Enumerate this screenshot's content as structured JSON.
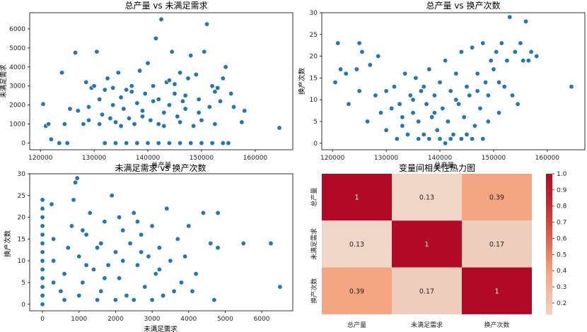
{
  "chart_data": [
    {
      "type": "scatter",
      "title": "总产量 vs 未满足需求",
      "xlabel": "总产量",
      "ylabel": "未满足需求",
      "xlim": [
        118000,
        167000
      ],
      "ylim": [
        -350,
        6850
      ],
      "xticks": [
        120000,
        130000,
        140000,
        150000,
        160000
      ],
      "yticks": [
        0,
        1000,
        2000,
        3000,
        4000,
        5000,
        6000
      ],
      "color": "#1f77b4",
      "points": [
        [
          120500,
          2050
        ],
        [
          121000,
          900
        ],
        [
          121500,
          1000
        ],
        [
          122000,
          200
        ],
        [
          123500,
          0
        ],
        [
          124000,
          3700
        ],
        [
          124500,
          1000
        ],
        [
          125000,
          0
        ],
        [
          125500,
          1800
        ],
        [
          126500,
          4750
        ],
        [
          127000,
          1700
        ],
        [
          128000,
          1000
        ],
        [
          128500,
          3200
        ],
        [
          129000,
          1900
        ],
        [
          129500,
          2900
        ],
        [
          130000,
          3000
        ],
        [
          130500,
          4800
        ],
        [
          131000,
          1000
        ],
        [
          131500,
          1500
        ],
        [
          132000,
          0
        ],
        [
          132000,
          2800
        ],
        [
          132500,
          3400
        ],
        [
          133000,
          1300
        ],
        [
          133500,
          2000
        ],
        [
          134000,
          1100
        ],
        [
          134500,
          3700
        ],
        [
          135000,
          2400
        ],
        [
          135500,
          1800
        ],
        [
          136000,
          2800
        ],
        [
          136500,
          1300
        ],
        [
          137000,
          3000
        ],
        [
          137500,
          1000
        ],
        [
          138000,
          2100
        ],
        [
          138500,
          3800
        ],
        [
          139000,
          1700
        ],
        [
          139500,
          2600
        ],
        [
          140000,
          4200
        ],
        [
          140500,
          1200
        ],
        [
          141000,
          3000
        ],
        [
          141500,
          5500
        ],
        [
          142000,
          2300
        ],
        [
          142500,
          6500
        ],
        [
          143000,
          900
        ],
        [
          143500,
          3200
        ],
        [
          144000,
          2000
        ],
        [
          144500,
          4800
        ],
        [
          145000,
          2600
        ],
        [
          145500,
          1400
        ],
        [
          146000,
          3700
        ],
        [
          146500,
          2200
        ],
        [
          147000,
          1800
        ],
        [
          147500,
          3400
        ],
        [
          148000,
          4600
        ],
        [
          148500,
          900
        ],
        [
          149000,
          3600
        ],
        [
          149500,
          2300
        ],
        [
          150000,
          1200
        ],
        [
          150500,
          4800
        ],
        [
          151000,
          6250
        ],
        [
          151500,
          1900
        ],
        [
          152000,
          3000
        ],
        [
          152500,
          1000
        ],
        [
          153000,
          2900
        ],
        [
          153500,
          2200
        ],
        [
          154000,
          3400
        ],
        [
          154500,
          4000
        ],
        [
          155000,
          0
        ],
        [
          155500,
          2600
        ],
        [
          156000,
          1900
        ],
        [
          157500,
          1100
        ],
        [
          158000,
          1700
        ],
        [
          164500,
          800
        ],
        [
          134000,
          0
        ],
        [
          136000,
          0
        ],
        [
          138000,
          0
        ],
        [
          140000,
          0
        ],
        [
          142000,
          0
        ],
        [
          144000,
          0
        ],
        [
          146000,
          0
        ],
        [
          148000,
          0
        ],
        [
          150000,
          0
        ],
        [
          152000,
          0
        ],
        [
          154000,
          0
        ],
        [
          137000,
          2700
        ],
        [
          139000,
          1400
        ],
        [
          141000,
          2200
        ],
        [
          143000,
          1600
        ],
        [
          145000,
          3100
        ],
        [
          135000,
          900
        ],
        [
          147000,
          2500
        ],
        [
          133500,
          2900
        ],
        [
          131000,
          2300
        ],
        [
          129000,
          1200
        ],
        [
          146000,
          1100
        ],
        [
          149500,
          1600
        ],
        [
          152500,
          2700
        ],
        [
          144000,
          3300
        ],
        [
          142000,
          1000
        ]
      ]
    },
    {
      "type": "scatter",
      "title": "总产量 vs 换产次数",
      "xlabel": "总产量",
      "ylabel": "换产次数",
      "xlim": [
        118000,
        167000
      ],
      "ylim": [
        -1.5,
        30
      ],
      "xticks": [
        120000,
        130000,
        140000,
        150000,
        160000
      ],
      "yticks": [
        0,
        5,
        10,
        15,
        20,
        25,
        30
      ],
      "color": "#1f77b4",
      "points": [
        [
          120500,
          14
        ],
        [
          121000,
          23
        ],
        [
          121500,
          17
        ],
        [
          122500,
          16
        ],
        [
          123000,
          9
        ],
        [
          124500,
          17
        ],
        [
          125000,
          23
        ],
        [
          125000,
          12
        ],
        [
          125500,
          21
        ],
        [
          126500,
          5
        ],
        [
          127000,
          18
        ],
        [
          128000,
          11
        ],
        [
          128500,
          20
        ],
        [
          129000,
          7
        ],
        [
          130000,
          12
        ],
        [
          130000,
          3
        ],
        [
          131000,
          8
        ],
        [
          131500,
          13
        ],
        [
          132000,
          1
        ],
        [
          132500,
          9
        ],
        [
          133000,
          4
        ],
        [
          133500,
          16
        ],
        [
          134000,
          2
        ],
        [
          134500,
          11
        ],
        [
          135000,
          7
        ],
        [
          135500,
          15
        ],
        [
          136000,
          5
        ],
        [
          136500,
          12
        ],
        [
          137000,
          2
        ],
        [
          137500,
          9
        ],
        [
          138000,
          17
        ],
        [
          138500,
          6
        ],
        [
          139000,
          11
        ],
        [
          139500,
          3
        ],
        [
          140000,
          14
        ],
        [
          140500,
          8
        ],
        [
          141000,
          19
        ],
        [
          141500,
          5
        ],
        [
          142000,
          12
        ],
        [
          142500,
          2
        ],
        [
          143000,
          16
        ],
        [
          143500,
          9
        ],
        [
          144000,
          21
        ],
        [
          144500,
          6
        ],
        [
          145000,
          13
        ],
        [
          145500,
          11
        ],
        [
          146000,
          22
        ],
        [
          146500,
          4
        ],
        [
          147000,
          16
        ],
        [
          147500,
          8
        ],
        [
          148000,
          23
        ],
        [
          148500,
          14
        ],
        [
          149000,
          11
        ],
        [
          149500,
          19
        ],
        [
          150000,
          17
        ],
        [
          150500,
          21
        ],
        [
          151000,
          14
        ],
        [
          151500,
          23
        ],
        [
          152000,
          13
        ],
        [
          152500,
          19
        ],
        [
          153000,
          29
        ],
        [
          153500,
          11
        ],
        [
          154000,
          21
        ],
        [
          154500,
          9
        ],
        [
          155000,
          23
        ],
        [
          155500,
          19
        ],
        [
          156000,
          28
        ],
        [
          156500,
          19
        ],
        [
          157000,
          21
        ],
        [
          158000,
          20
        ],
        [
          164500,
          13
        ],
        [
          136000,
          1
        ],
        [
          138000,
          1
        ],
        [
          140000,
          1
        ],
        [
          142000,
          1
        ],
        [
          144000,
          1
        ],
        [
          146000,
          1
        ],
        [
          148000,
          1
        ],
        [
          135000,
          10
        ],
        [
          139000,
          7
        ],
        [
          143000,
          10
        ],
        [
          147000,
          12
        ],
        [
          149000,
          5
        ],
        [
          151000,
          7
        ],
        [
          141000,
          0
        ],
        [
          145000,
          2
        ],
        [
          137000,
          13
        ],
        [
          133000,
          6
        ]
      ]
    },
    {
      "type": "scatter",
      "title": "未满足需求 vs 换产次数",
      "xlabel": "未满足需求",
      "ylabel": "换产次数",
      "xlim": [
        -350,
        6850
      ],
      "ylim": [
        -1.5,
        30
      ],
      "xticks": [
        0,
        1000,
        2000,
        3000,
        4000,
        5000,
        6000
      ],
      "yticks": [
        0,
        5,
        10,
        15,
        20,
        25,
        30
      ],
      "color": "#1f77b4",
      "points": [
        [
          0,
          0
        ],
        [
          0,
          2
        ],
        [
          0,
          4
        ],
        [
          0,
          6
        ],
        [
          0,
          8
        ],
        [
          0,
          10
        ],
        [
          0,
          12
        ],
        [
          0,
          14
        ],
        [
          0,
          16
        ],
        [
          0,
          18
        ],
        [
          0,
          20
        ],
        [
          0,
          22
        ],
        [
          0,
          24
        ],
        [
          250,
          23
        ],
        [
          300,
          5
        ],
        [
          300,
          15
        ],
        [
          300,
          10
        ],
        [
          500,
          3
        ],
        [
          600,
          7
        ],
        [
          700,
          13
        ],
        [
          800,
          18
        ],
        [
          850,
          24
        ],
        [
          900,
          28
        ],
        [
          950,
          29
        ],
        [
          1000,
          11
        ],
        [
          1100,
          5
        ],
        [
          1200,
          16
        ],
        [
          1300,
          21
        ],
        [
          1400,
          8
        ],
        [
          1500,
          13
        ],
        [
          1600,
          3
        ],
        [
          1700,
          19
        ],
        [
          1800,
          9
        ],
        [
          1900,
          25
        ],
        [
          2000,
          12
        ],
        [
          2100,
          6
        ],
        [
          2200,
          17
        ],
        [
          2300,
          2
        ],
        [
          2400,
          14
        ],
        [
          2500,
          21
        ],
        [
          2600,
          9
        ],
        [
          2700,
          16
        ],
        [
          2800,
          4
        ],
        [
          2900,
          11
        ],
        [
          3000,
          18
        ],
        [
          3100,
          7
        ],
        [
          3200,
          13
        ],
        [
          3300,
          2
        ],
        [
          3400,
          22
        ],
        [
          3500,
          10
        ],
        [
          3700,
          15
        ],
        [
          3800,
          5
        ],
        [
          3900,
          11
        ],
        [
          4000,
          18
        ],
        [
          4200,
          7
        ],
        [
          4400,
          21
        ],
        [
          4600,
          14
        ],
        [
          4800,
          21
        ],
        [
          4800,
          13
        ],
        [
          5500,
          14
        ],
        [
          6250,
          14
        ],
        [
          6500,
          4
        ],
        [
          1000,
          2
        ],
        [
          1500,
          1
        ],
        [
          2000,
          1
        ],
        [
          2500,
          1
        ],
        [
          3000,
          1
        ],
        [
          1200,
          9
        ],
        [
          1700,
          6
        ],
        [
          2200,
          10
        ],
        [
          2700,
          12
        ],
        [
          3200,
          8
        ],
        [
          600,
          1
        ],
        [
          1100,
          17
        ],
        [
          1600,
          14
        ],
        [
          2100,
          20
        ],
        [
          2600,
          19
        ],
        [
          3600,
          3
        ],
        [
          4100,
          3
        ],
        [
          4700,
          1
        ]
      ]
    },
    {
      "type": "heatmap",
      "title": "变量间相关性热力图",
      "categories": [
        "总产量",
        "未满足需求",
        "换产次数"
      ],
      "values": [
        [
          1,
          0.13,
          0.39
        ],
        [
          0.13,
          1,
          0.17
        ],
        [
          0.39,
          0.17,
          1
        ]
      ],
      "annotations": [
        [
          "1",
          "0.13",
          "0.39"
        ],
        [
          "0.13",
          "1",
          "0.17"
        ],
        [
          "0.39",
          "0.17",
          "1"
        ]
      ],
      "colorbar": {
        "min": 0.13,
        "max": 1.0,
        "ticks": [
          "0.2",
          "0.3",
          "0.4",
          "0.5",
          "0.6",
          "0.7",
          "0.8",
          "0.9",
          "1.0"
        ],
        "tick_values": [
          0.2,
          0.3,
          0.4,
          0.5,
          0.6,
          0.7,
          0.8,
          0.9,
          1.0
        ]
      }
    }
  ]
}
